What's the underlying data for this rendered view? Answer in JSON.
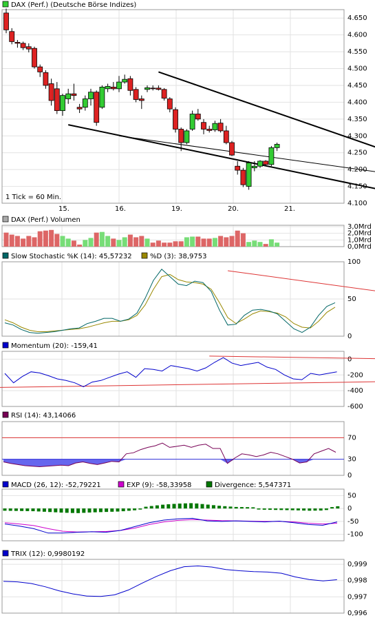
{
  "chart_data": {
    "type": "line",
    "price": {
      "legend": "DAX (Perf.) (Deutsche Börse Indizes)",
      "legend_color": "#33cc33",
      "ylim": [
        4100,
        4675
      ],
      "y_ticks": [
        "4.100",
        "4.150",
        "4.200",
        "4.250",
        "4.300",
        "4.350",
        "4.400",
        "4.450",
        "4.500",
        "4.550",
        "4.600",
        "4.650"
      ],
      "x_ticks": [
        {
          "i": 10,
          "label": "15."
        },
        {
          "i": 20,
          "label": "16."
        },
        {
          "i": 30,
          "label": "19."
        },
        {
          "i": 40,
          "label": "20."
        },
        {
          "i": 50,
          "label": "21."
        }
      ],
      "note": "1 Tick = 60 Min.",
      "up_color": "#33cc33",
      "down_color": "#dd2222",
      "candles": [
        {
          "o": 4665,
          "h": 4678,
          "l": 4605,
          "c": 4615
        },
        {
          "o": 4610,
          "h": 4620,
          "l": 4572,
          "c": 4580
        },
        {
          "o": 4578,
          "h": 4585,
          "l": 4562,
          "c": 4575
        },
        {
          "o": 4575,
          "h": 4580,
          "l": 4555,
          "c": 4562
        },
        {
          "o": 4565,
          "h": 4575,
          "l": 4548,
          "c": 4558
        },
        {
          "o": 4560,
          "h": 4565,
          "l": 4500,
          "c": 4505
        },
        {
          "o": 4505,
          "h": 4512,
          "l": 4475,
          "c": 4490
        },
        {
          "o": 4488,
          "h": 4495,
          "l": 4440,
          "c": 4450
        },
        {
          "o": 4455,
          "h": 4470,
          "l": 4390,
          "c": 4405
        },
        {
          "o": 4440,
          "h": 4460,
          "l": 4365,
          "c": 4375
        },
        {
          "o": 4375,
          "h": 4425,
          "l": 4360,
          "c": 4420
        },
        {
          "o": 4410,
          "h": 4440,
          "l": 4395,
          "c": 4425
        },
        {
          "o": 4425,
          "h": 4455,
          "l": 4405,
          "c": 4420
        },
        {
          "o": 4385,
          "h": 4395,
          "l": 4368,
          "c": 4380
        },
        {
          "o": 4385,
          "h": 4420,
          "l": 4375,
          "c": 4410
        },
        {
          "o": 4410,
          "h": 4440,
          "l": 4390,
          "c": 4430
        },
        {
          "o": 4430,
          "h": 4435,
          "l": 4330,
          "c": 4340
        },
        {
          "o": 4385,
          "h": 4450,
          "l": 4380,
          "c": 4445
        },
        {
          "o": 4440,
          "h": 4455,
          "l": 4430,
          "c": 4447
        },
        {
          "o": 4445,
          "h": 4460,
          "l": 4435,
          "c": 4440
        },
        {
          "o": 4440,
          "h": 4478,
          "l": 4430,
          "c": 4460
        },
        {
          "o": 4460,
          "h": 4482,
          "l": 4455,
          "c": 4468
        },
        {
          "o": 4470,
          "h": 4478,
          "l": 4420,
          "c": 4435
        },
        {
          "o": 4438,
          "h": 4445,
          "l": 4400,
          "c": 4408
        },
        {
          "o": 4410,
          "h": 4420,
          "l": 4380,
          "c": 4405
        },
        {
          "o": 4438,
          "h": 4450,
          "l": 4430,
          "c": 4443
        },
        {
          "o": 4442,
          "h": 4450,
          "l": 4435,
          "c": 4440
        },
        {
          "o": 4442,
          "h": 4450,
          "l": 4435,
          "c": 4438
        },
        {
          "o": 4438,
          "h": 4442,
          "l": 4405,
          "c": 4412
        },
        {
          "o": 4410,
          "h": 4415,
          "l": 4370,
          "c": 4380
        },
        {
          "o": 4378,
          "h": 4385,
          "l": 4310,
          "c": 4320
        },
        {
          "o": 4320,
          "h": 4325,
          "l": 4255,
          "c": 4280
        },
        {
          "o": 4280,
          "h": 4320,
          "l": 4275,
          "c": 4315
        },
        {
          "o": 4320,
          "h": 4375,
          "l": 4315,
          "c": 4365
        },
        {
          "o": 4365,
          "h": 4380,
          "l": 4345,
          "c": 4350
        },
        {
          "o": 4340,
          "h": 4350,
          "l": 4305,
          "c": 4320
        },
        {
          "o": 4320,
          "h": 4330,
          "l": 4310,
          "c": 4316
        },
        {
          "o": 4318,
          "h": 4345,
          "l": 4312,
          "c": 4337
        },
        {
          "o": 4338,
          "h": 4350,
          "l": 4310,
          "c": 4315
        },
        {
          "o": 4315,
          "h": 4330,
          "l": 4275,
          "c": 4280
        },
        {
          "o": 4280,
          "h": 4285,
          "l": 4240,
          "c": 4243
        },
        {
          "o": 4210,
          "h": 4225,
          "l": 4185,
          "c": 4198
        },
        {
          "o": 4198,
          "h": 4205,
          "l": 4148,
          "c": 4155
        },
        {
          "o": 4150,
          "h": 4225,
          "l": 4140,
          "c": 4220
        },
        {
          "o": 4205,
          "h": 4225,
          "l": 4195,
          "c": 4210
        },
        {
          "o": 4210,
          "h": 4228,
          "l": 4205,
          "c": 4225
        },
        {
          "o": 4225,
          "h": 4228,
          "l": 4212,
          "c": 4215
        },
        {
          "o": 4215,
          "h": 4270,
          "l": 4210,
          "c": 4265
        },
        {
          "o": 4265,
          "h": 4280,
          "l": 4255,
          "c": 4275
        }
      ],
      "trendlines": [
        {
          "i1": 11,
          "p1": 4333,
          "i2": 67,
          "p2": 4138,
          "color": "#000000",
          "width": 2
        },
        {
          "i1": 27,
          "p1": 4490,
          "i2": 67,
          "p2": 4258,
          "color": "#000000",
          "width": 2
        },
        {
          "i1": 20,
          "p1": 4300,
          "i2": 67,
          "p2": 4190,
          "color": "#000000",
          "width": 1
        }
      ]
    },
    "volume": {
      "legend": "DAX (Perf.) Volumen",
      "legend_color": "#aaaaaa",
      "ylim": [
        0,
        3.2
      ],
      "y_ticks": [
        {
          "v": 3.0,
          "label": "3,0Mrd"
        },
        {
          "v": 2.0,
          "label": "2,0Mrd"
        },
        {
          "v": 1.0,
          "label": "1,0Mrd"
        },
        {
          "v": 0,
          "label": "0,0Mrd"
        }
      ],
      "values": [
        2.1,
        1.8,
        1.6,
        1.2,
        1.6,
        1.4,
        2.3,
        2.4,
        2.5,
        1.9,
        1.6,
        1.2,
        0.9,
        0.3,
        1.0,
        1.3,
        2.1,
        2.2,
        1.6,
        1.2,
        1.0,
        1.4,
        1.8,
        1.4,
        1.6,
        1.2,
        0.6,
        0.9,
        0.6,
        0.6,
        0.8,
        0.8,
        1.4,
        1.5,
        1.5,
        1.2,
        1.2,
        1.3,
        1.6,
        1.4,
        1.6,
        2.4,
        2.0,
        0.7,
        0.9,
        0.7,
        0.4,
        1.1,
        0.6
      ]
    },
    "stochastic": {
      "legend_k": "Slow Stochastic %K (14): 45,57232",
      "legend_d": "%D (3): 38,9753",
      "k_color": "#006666",
      "d_color": "#998800",
      "ylim": [
        0,
        100
      ],
      "y_ticks": [
        0,
        50,
        100
      ],
      "k": [
        18,
        15,
        9,
        5,
        4,
        5,
        6,
        8,
        10,
        11,
        17,
        20,
        24,
        24,
        20,
        23,
        31,
        51,
        75,
        90,
        80,
        70,
        68,
        74,
        72,
        60,
        35,
        15,
        16,
        28,
        35,
        36,
        34,
        30,
        20,
        10,
        5,
        12,
        28,
        40,
        45
      ],
      "d": [
        22,
        18,
        12,
        8,
        6,
        6,
        7,
        8,
        9,
        10,
        12,
        15,
        18,
        20,
        20,
        22,
        28,
        42,
        63,
        80,
        83,
        76,
        73,
        72,
        70,
        63,
        45,
        25,
        17,
        23,
        30,
        34,
        33,
        31,
        26,
        17,
        12,
        11,
        20,
        32,
        39
      ],
      "trendline": {
        "i1": 27,
        "v1": 88,
        "i2": 64,
        "v2": 32,
        "color": "#dd3333"
      }
    },
    "momentum": {
      "legend": "Momentum (20): -159,41",
      "color": "#0000cc",
      "ylim": [
        -600,
        100
      ],
      "y_ticks": [
        {
          "v": 0,
          "label": "0"
        },
        {
          "v": -200,
          "label": "-200"
        },
        {
          "v": -400,
          "label": "-400"
        },
        {
          "v": -600,
          "label": "-600"
        }
      ],
      "values": [
        -180,
        -300,
        -220,
        -160,
        -175,
        -210,
        -250,
        -270,
        -300,
        -350,
        -290,
        -270,
        -230,
        -190,
        -160,
        -230,
        -120,
        -130,
        -150,
        -80,
        -100,
        -120,
        -150,
        -110,
        -40,
        20,
        -50,
        -80,
        -60,
        -40,
        -100,
        -130,
        -200,
        -250,
        -260,
        -180,
        -200,
        -180,
        -160
      ],
      "trendlines": [
        {
          "i1": 36,
          "v1": 40,
          "i2": 64,
          "v2": -30,
          "color": "#dd3333"
        },
        {
          "i1": 11,
          "v1": -360,
          "i2": 64,
          "v2": -250,
          "color": "#dd3333"
        }
      ]
    },
    "rsi": {
      "legend": "RSI (14): 43,14066",
      "color": "#770055",
      "fill_color": "#6666ee",
      "ylim": [
        0,
        100
      ],
      "y_ticks": [
        0,
        30,
        70
      ],
      "ref_lines": [
        {
          "v": 70,
          "color": "#dd3333"
        },
        {
          "v": 30,
          "color": "#3333dd"
        }
      ],
      "values": [
        25,
        22,
        20,
        18,
        17,
        16,
        17,
        18,
        19,
        18,
        23,
        25,
        22,
        20,
        23,
        26,
        25,
        40,
        42,
        48,
        52,
        55,
        60,
        52,
        54,
        56,
        52,
        56,
        58,
        50,
        50,
        22,
        32,
        40,
        38,
        35,
        38,
        43,
        40,
        35,
        30,
        23,
        25,
        40,
        45,
        50,
        43
      ]
    },
    "macd": {
      "legend_macd": "MACD (26, 12): -52,79221",
      "legend_exp": "EXP (9): -58,33958",
      "legend_div": "Divergence: 5,547371",
      "macd_color": "#0000cc",
      "exp_color": "#cc00cc",
      "div_color": "#007700",
      "ylim": [
        -125,
        75
      ],
      "y_ticks": [
        {
          "v": 50,
          "label": "50"
        },
        {
          "v": 0,
          "label": "0"
        },
        {
          "v": -50,
          "label": "-50"
        },
        {
          "v": -100,
          "label": "-100"
        }
      ],
      "macd": [
        -60,
        -68,
        -78,
        -95,
        -95,
        -92,
        -90,
        -92,
        -85,
        -70,
        -55,
        -45,
        -40,
        -38,
        -48,
        -50,
        -48,
        -50,
        -52,
        -49,
        -55,
        -62,
        -65,
        -52
      ],
      "exp": [
        -55,
        -60,
        -66,
        -78,
        -88,
        -91,
        -90,
        -89,
        -85,
        -76,
        -62,
        -52,
        -46,
        -43,
        -45,
        -47,
        -48,
        -49,
        -50,
        -50,
        -52,
        -57,
        -60,
        -57
      ],
      "divergence": [
        -5,
        -6,
        -7,
        -10,
        -13,
        -15,
        -12,
        -10,
        -8,
        -3,
        5,
        12,
        16,
        18,
        12,
        6,
        2,
        1,
        -1,
        -2,
        -3,
        -5,
        -4,
        5
      ]
    },
    "trix": {
      "legend": "TRIX (12): 0,9980192",
      "color": "#0000cc",
      "ylim": [
        0.996,
        0.9993
      ],
      "y_ticks": [
        {
          "v": 0.999,
          "label": "0,999"
        },
        {
          "v": 0.998,
          "label": "0,998"
        },
        {
          "v": 0.997,
          "label": "0,997"
        },
        {
          "v": 0.996,
          "label": "0,996"
        }
      ],
      "values": [
        0.99795,
        0.99792,
        0.99782,
        0.99762,
        0.99737,
        0.99718,
        0.99705,
        0.99703,
        0.99712,
        0.99742,
        0.99785,
        0.99825,
        0.9986,
        0.99885,
        0.9989,
        0.99883,
        0.99868,
        0.9986,
        0.99855,
        0.99852,
        0.99845,
        0.99822,
        0.99806,
        0.99798,
        0.99805
      ]
    }
  }
}
